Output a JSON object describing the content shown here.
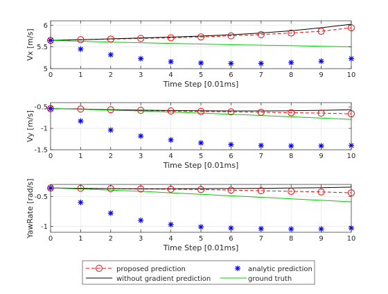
{
  "chart_data": [
    {
      "type": "line",
      "xlabel": "Time Step [0.01ms]",
      "ylabel": "Vx [m/s]",
      "xlim": [
        0,
        10
      ],
      "ylim": [
        5,
        6.1
      ],
      "x_ticks": [
        0,
        1,
        2,
        3,
        4,
        5,
        6,
        7,
        8,
        9,
        10
      ],
      "y_ticks": [
        5,
        5.5,
        6
      ],
      "y_tick_labels": [
        "5",
        "5.5",
        "6"
      ],
      "grid": true,
      "x": [
        0,
        1,
        2,
        3,
        4,
        5,
        6,
        7,
        8,
        9,
        10
      ],
      "series": [
        {
          "name": "proposed prediction",
          "style": "dashed-circle",
          "color": "#ff0000",
          "values": [
            5.65,
            5.665,
            5.68,
            5.695,
            5.71,
            5.73,
            5.755,
            5.785,
            5.82,
            5.86,
            5.94
          ]
        },
        {
          "name": "without gradient prediction",
          "style": "line",
          "color": "#000000",
          "values": [
            5.65,
            5.665,
            5.685,
            5.705,
            5.725,
            5.75,
            5.78,
            5.82,
            5.87,
            5.94,
            6.02
          ]
        },
        {
          "name": "ground truth",
          "style": "line",
          "color": "#00cc00",
          "values": [
            5.65,
            5.63,
            5.61,
            5.595,
            5.58,
            5.565,
            5.55,
            5.54,
            5.53,
            5.515,
            5.5
          ]
        },
        {
          "name": "analytic prediction",
          "style": "star",
          "color": "#0000ff",
          "values": [
            5.65,
            5.45,
            5.32,
            5.23,
            5.16,
            5.13,
            5.12,
            5.12,
            5.14,
            5.17,
            5.23
          ]
        }
      ]
    },
    {
      "type": "line",
      "xlabel": "Time Step [0.01ms]",
      "ylabel": "Vy [m/s]",
      "xlim": [
        0,
        10
      ],
      "ylim": [
        -1.5,
        -0.4
      ],
      "x_ticks": [
        0,
        1,
        2,
        3,
        4,
        5,
        6,
        7,
        8,
        9,
        10
      ],
      "y_ticks": [
        -1.5,
        -1,
        -0.5
      ],
      "y_tick_labels": [
        "-1.5",
        "-1",
        "-0.5"
      ],
      "grid": true,
      "x": [
        0,
        1,
        2,
        3,
        4,
        5,
        6,
        7,
        8,
        9,
        10
      ],
      "series": [
        {
          "name": "proposed prediction",
          "style": "dashed-circle",
          "color": "#ff0000",
          "values": [
            -0.54,
            -0.55,
            -0.565,
            -0.58,
            -0.595,
            -0.605,
            -0.615,
            -0.625,
            -0.635,
            -0.645,
            -0.66
          ]
        },
        {
          "name": "without gradient prediction",
          "style": "line",
          "color": "#000000",
          "values": [
            -0.54,
            -0.55,
            -0.565,
            -0.575,
            -0.585,
            -0.59,
            -0.595,
            -0.595,
            -0.59,
            -0.58,
            -0.565
          ]
        },
        {
          "name": "ground truth",
          "style": "line",
          "color": "#00cc00",
          "values": [
            -0.54,
            -0.555,
            -0.575,
            -0.595,
            -0.62,
            -0.645,
            -0.67,
            -0.7,
            -0.73,
            -0.76,
            -0.79
          ]
        },
        {
          "name": "analytic prediction",
          "style": "star",
          "color": "#0000ff",
          "values": [
            -0.54,
            -0.83,
            -1.04,
            -1.18,
            -1.27,
            -1.34,
            -1.38,
            -1.4,
            -1.41,
            -1.41,
            -1.4
          ]
        }
      ]
    },
    {
      "type": "line",
      "xlabel": "Time Step [0.01ms]",
      "ylabel": "YawRate [rad/s]",
      "xlim": [
        0,
        10
      ],
      "ylim": [
        -1.1,
        -0.3
      ],
      "x_ticks": [
        0,
        1,
        2,
        3,
        4,
        5,
        6,
        7,
        8,
        9,
        10
      ],
      "y_ticks": [
        -1,
        -0.5
      ],
      "y_tick_labels": [
        "-1",
        "-0.5"
      ],
      "grid": true,
      "x": [
        0,
        1,
        2,
        3,
        4,
        5,
        6,
        7,
        8,
        9,
        10
      ],
      "series": [
        {
          "name": "proposed prediction",
          "style": "dashed-circle",
          "color": "#ff0000",
          "values": [
            -0.36,
            -0.365,
            -0.37,
            -0.375,
            -0.38,
            -0.385,
            -0.395,
            -0.405,
            -0.415,
            -0.425,
            -0.44
          ]
        },
        {
          "name": "without gradient prediction",
          "style": "line",
          "color": "#000000",
          "values": [
            -0.36,
            -0.365,
            -0.37,
            -0.372,
            -0.372,
            -0.37,
            -0.368,
            -0.365,
            -0.36,
            -0.355,
            -0.345
          ]
        },
        {
          "name": "ground truth",
          "style": "line",
          "color": "#00cc00",
          "values": [
            -0.36,
            -0.375,
            -0.395,
            -0.415,
            -0.44,
            -0.465,
            -0.49,
            -0.515,
            -0.54,
            -0.565,
            -0.59
          ]
        },
        {
          "name": "analytic prediction",
          "style": "star",
          "color": "#0000ff",
          "values": [
            -0.36,
            -0.6,
            -0.78,
            -0.9,
            -0.97,
            -1.01,
            -1.03,
            -1.04,
            -1.045,
            -1.045,
            -1.03
          ]
        }
      ]
    }
  ],
  "legend": {
    "placement": "bottom",
    "entries": [
      {
        "label": "proposed prediction",
        "style": "dashed-circle",
        "color": "#ff0000"
      },
      {
        "label": "analytic prediction",
        "style": "star",
        "color": "#0000ff"
      },
      {
        "label": "without gradient prediction",
        "style": "line",
        "color": "#000000"
      },
      {
        "label": "ground truth",
        "style": "line",
        "color": "#00cc00"
      }
    ]
  }
}
